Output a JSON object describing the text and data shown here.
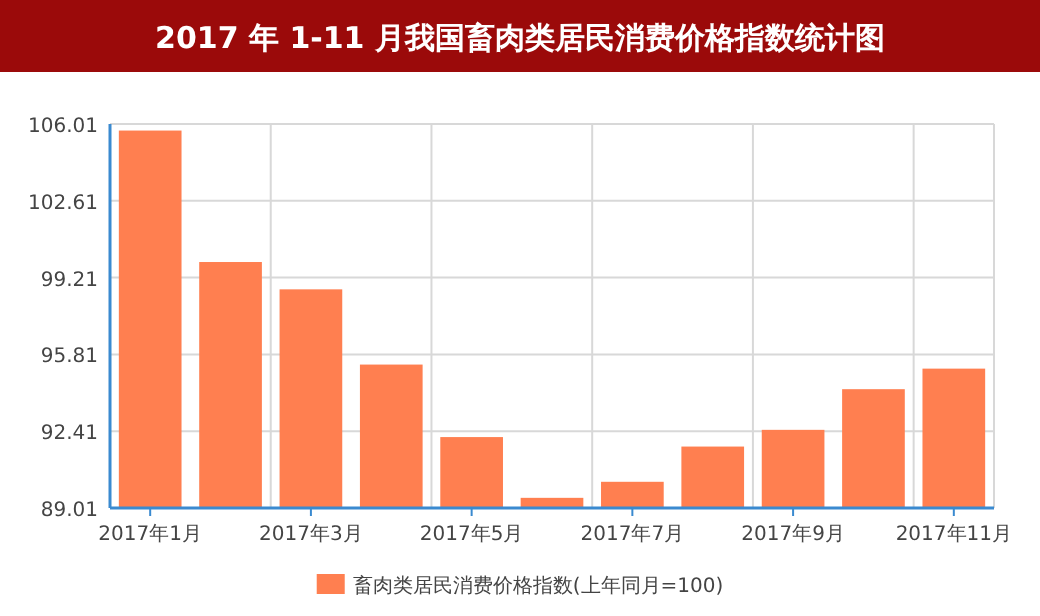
{
  "chart_data": {
    "type": "bar",
    "title": "2017 年 1-11 月我国畜肉类居民消费价格指数统计图",
    "categories": [
      "2017年1月",
      null,
      "2017年3月",
      null,
      "2017年5月",
      null,
      "2017年7月",
      null,
      "2017年9月",
      null,
      "2017年11月"
    ],
    "series": [
      {
        "name": "畜肉类居民消费价格指数(上年同月=100)",
        "color": "#ff7f50",
        "values": [
          105.72,
          99.9,
          98.69,
          95.36,
          92.15,
          89.46,
          90.17,
          91.73,
          92.47,
          94.27,
          95.18
        ]
      }
    ],
    "ylim": [
      89.01,
      106.01
    ],
    "yticks": [
      89.01,
      92.41,
      95.81,
      99.21,
      102.61,
      106.01
    ],
    "grid": true,
    "legend": "bottom"
  }
}
